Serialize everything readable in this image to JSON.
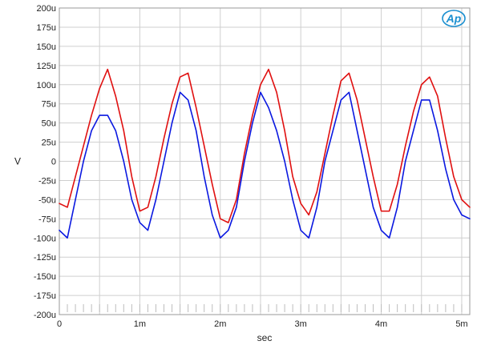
{
  "logo": {
    "text": "Ap",
    "color": "#1a8fd0"
  },
  "chart_data": {
    "type": "line",
    "title": "",
    "xlabel": "sec",
    "ylabel": "V",
    "xlim": [
      0,
      0.0051
    ],
    "ylim": [
      -0.0002,
      0.0002
    ],
    "grid": true,
    "x_ticks": [
      {
        "value": 0,
        "label": "0"
      },
      {
        "value": 0.001,
        "label": "1m"
      },
      {
        "value": 0.002,
        "label": "2m"
      },
      {
        "value": 0.003,
        "label": "3m"
      },
      {
        "value": 0.004,
        "label": "4m"
      },
      {
        "value": 0.005,
        "label": "5m"
      }
    ],
    "y_ticks": [
      {
        "value": 0.0002,
        "label": "200u"
      },
      {
        "value": 0.000175,
        "label": "175u"
      },
      {
        "value": 0.00015,
        "label": "150u"
      },
      {
        "value": 0.000125,
        "label": "125u"
      },
      {
        "value": 0.0001,
        "label": "100u"
      },
      {
        "value": 7.5e-05,
        "label": "75u"
      },
      {
        "value": 5e-05,
        "label": "50u"
      },
      {
        "value": 2.5e-05,
        "label": "25u"
      },
      {
        "value": 0,
        "label": "0"
      },
      {
        "value": -2.5e-05,
        "label": "-25u"
      },
      {
        "value": -5e-05,
        "label": "-50u"
      },
      {
        "value": -7.5e-05,
        "label": "-75u"
      },
      {
        "value": -0.0001,
        "label": "-100u"
      },
      {
        "value": -0.000125,
        "label": "-125u"
      },
      {
        "value": -0.00015,
        "label": "-150u"
      },
      {
        "value": -0.000175,
        "label": "-175u"
      },
      {
        "value": -0.0002,
        "label": "-200u"
      }
    ],
    "series": [
      {
        "color": "#e01010",
        "x": [
          0,
          0.0001,
          0.0002,
          0.0003,
          0.0004,
          0.0005,
          0.0006,
          0.0007,
          0.0008,
          0.0009,
          0.001,
          0.0011,
          0.0012,
          0.0013,
          0.0014,
          0.0015,
          0.0016,
          0.0017,
          0.0018,
          0.0019,
          0.002,
          0.0021,
          0.0022,
          0.0023,
          0.0024,
          0.0025,
          0.0026,
          0.0027,
          0.0028,
          0.0029,
          0.003,
          0.0031,
          0.0032,
          0.0033,
          0.0034,
          0.0035,
          0.0036,
          0.0037,
          0.0038,
          0.0039,
          0.004,
          0.0041,
          0.0042,
          0.0043,
          0.0044,
          0.0045,
          0.0046,
          0.0047,
          0.0048,
          0.0049,
          0.005,
          0.0051
        ],
        "y": [
          -5.5e-05,
          -6e-05,
          -2e-05,
          2e-05,
          6e-05,
          9.5e-05,
          0.00012,
          8.5e-05,
          4e-05,
          -2e-05,
          -6.5e-05,
          -6e-05,
          -2e-05,
          3e-05,
          7.5e-05,
          0.00011,
          0.000115,
          7e-05,
          2e-05,
          -3e-05,
          -7.5e-05,
          -8e-05,
          -5e-05,
          1e-05,
          6e-05,
          0.0001,
          0.00012,
          9e-05,
          4e-05,
          -2e-05,
          -5.5e-05,
          -7e-05,
          -4e-05,
          1e-05,
          6e-05,
          0.000105,
          0.000115,
          8e-05,
          3e-05,
          -2e-05,
          -6.5e-05,
          -6.5e-05,
          -3e-05,
          2e-05,
          6.5e-05,
          0.0001,
          0.00011,
          8.5e-05,
          3e-05,
          -2e-05,
          -5e-05,
          -6e-05
        ]
      },
      {
        "color": "#0a18e0",
        "x": [
          0,
          0.0001,
          0.0002,
          0.0003,
          0.0004,
          0.0005,
          0.0006,
          0.0007,
          0.0008,
          0.0009,
          0.001,
          0.0011,
          0.0012,
          0.0013,
          0.0014,
          0.0015,
          0.0016,
          0.0017,
          0.0018,
          0.0019,
          0.002,
          0.0021,
          0.0022,
          0.0023,
          0.0024,
          0.0025,
          0.0026,
          0.0027,
          0.0028,
          0.0029,
          0.003,
          0.0031,
          0.0032,
          0.0033,
          0.0034,
          0.0035,
          0.0036,
          0.0037,
          0.0038,
          0.0039,
          0.004,
          0.0041,
          0.0042,
          0.0043,
          0.0044,
          0.0045,
          0.0046,
          0.0047,
          0.0048,
          0.0049,
          0.005,
          0.0051
        ],
        "y": [
          -9e-05,
          -0.0001,
          -5e-05,
          0.0,
          4e-05,
          6e-05,
          6e-05,
          4e-05,
          0.0,
          -5e-05,
          -8e-05,
          -9e-05,
          -5e-05,
          0.0,
          5e-05,
          9e-05,
          8e-05,
          4e-05,
          -2e-05,
          -7e-05,
          -0.0001,
          -9e-05,
          -6e-05,
          0.0,
          5e-05,
          9e-05,
          7e-05,
          4e-05,
          0.0,
          -5e-05,
          -9e-05,
          -0.0001,
          -6e-05,
          0.0,
          4e-05,
          8e-05,
          9e-05,
          4e-05,
          -1e-05,
          -6e-05,
          -9e-05,
          -0.0001,
          -6e-05,
          0.0,
          4e-05,
          8e-05,
          8e-05,
          4e-05,
          -1e-05,
          -5e-05,
          -7e-05,
          -7.5e-05
        ]
      }
    ]
  }
}
